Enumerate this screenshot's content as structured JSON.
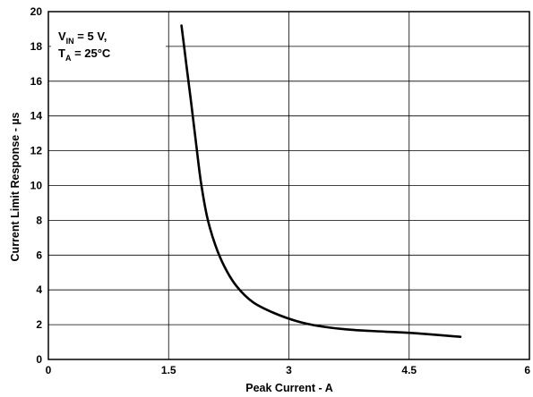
{
  "chart_data": {
    "type": "line",
    "title": "",
    "xlabel": "Peak Current - A",
    "ylabel": "Current Limit Response - µs",
    "xlim": [
      0,
      6
    ],
    "ylim": [
      0,
      20
    ],
    "x_ticks": [
      0,
      1.5,
      3,
      4.5,
      6
    ],
    "x_tick_labels": [
      "0",
      "1.5",
      "3",
      "4.5",
      "6"
    ],
    "y_ticks": [
      0,
      2,
      4,
      6,
      8,
      10,
      12,
      14,
      16,
      18,
      20
    ],
    "y_tick_labels": [
      "0",
      "2",
      "4",
      "6",
      "8",
      "10",
      "12",
      "14",
      "16",
      "18",
      "20"
    ],
    "grid": true,
    "annotation": {
      "line1": {
        "var": "V",
        "sub": "IN",
        "rest": " = 5 V,"
      },
      "line2": {
        "var": "T",
        "sub": "A",
        "rest": " = 25°C"
      }
    },
    "series": [
      {
        "x": [
          1.66,
          1.72,
          1.78,
          1.84,
          1.9,
          1.98,
          2.08,
          2.2,
          2.35,
          2.55,
          2.8,
          3.1,
          3.4,
          3.8,
          4.2,
          4.6,
          5.14
        ],
        "y": [
          19.2,
          17.0,
          14.8,
          12.5,
          10.3,
          8.2,
          6.6,
          5.3,
          4.2,
          3.3,
          2.7,
          2.2,
          1.9,
          1.7,
          1.6,
          1.5,
          1.3
        ]
      }
    ]
  }
}
